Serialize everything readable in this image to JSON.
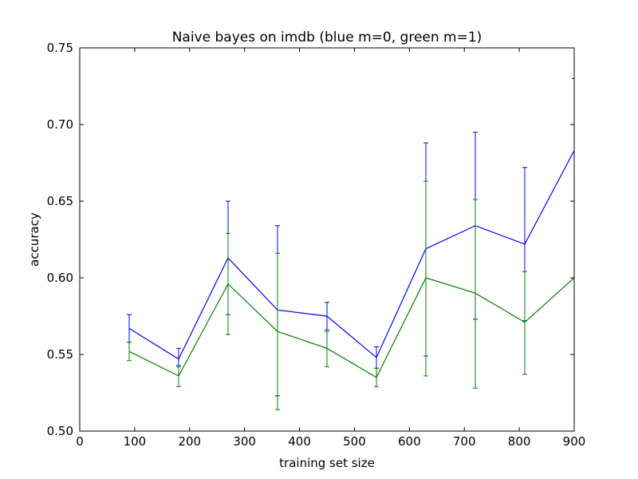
{
  "chart_data": {
    "type": "line",
    "title": "Naive bayes on imdb (blue m=0, green m=1)",
    "xlabel": "training set size",
    "ylabel": "accuracy",
    "xlim": [
      0,
      900
    ],
    "ylim": [
      0.5,
      0.75
    ],
    "xticks": [
      0,
      100,
      200,
      300,
      400,
      500,
      600,
      700,
      800,
      900
    ],
    "yticks": [
      0.5,
      0.55,
      0.6,
      0.65,
      0.7,
      0.75
    ],
    "x": [
      90,
      180,
      270,
      360,
      450,
      540,
      630,
      720,
      810,
      900
    ],
    "grid": false,
    "series": [
      {
        "color": "#0000ff",
        "values": [
          0.567,
          0.547,
          0.613,
          0.579,
          0.575,
          0.548,
          0.619,
          0.634,
          0.622,
          0.683
        ],
        "err_low": [
          0.558,
          0.542,
          0.576,
          0.523,
          0.566,
          0.541,
          0.549,
          0.573,
          0.572,
          null
        ],
        "err_high": [
          0.576,
          0.554,
          0.65,
          0.634,
          0.584,
          0.555,
          0.688,
          0.695,
          0.672,
          0.73
        ]
      },
      {
        "color": "#008000",
        "values": [
          0.552,
          0.536,
          0.596,
          0.565,
          0.554,
          0.535,
          0.6,
          0.59,
          0.571,
          0.6
        ],
        "err_low": [
          0.546,
          0.529,
          0.563,
          0.514,
          0.542,
          0.529,
          0.536,
          0.528,
          0.537,
          null
        ],
        "err_high": [
          0.558,
          0.543,
          0.629,
          0.616,
          0.565,
          0.541,
          0.663,
          0.651,
          0.604,
          0.65
        ]
      }
    ]
  }
}
